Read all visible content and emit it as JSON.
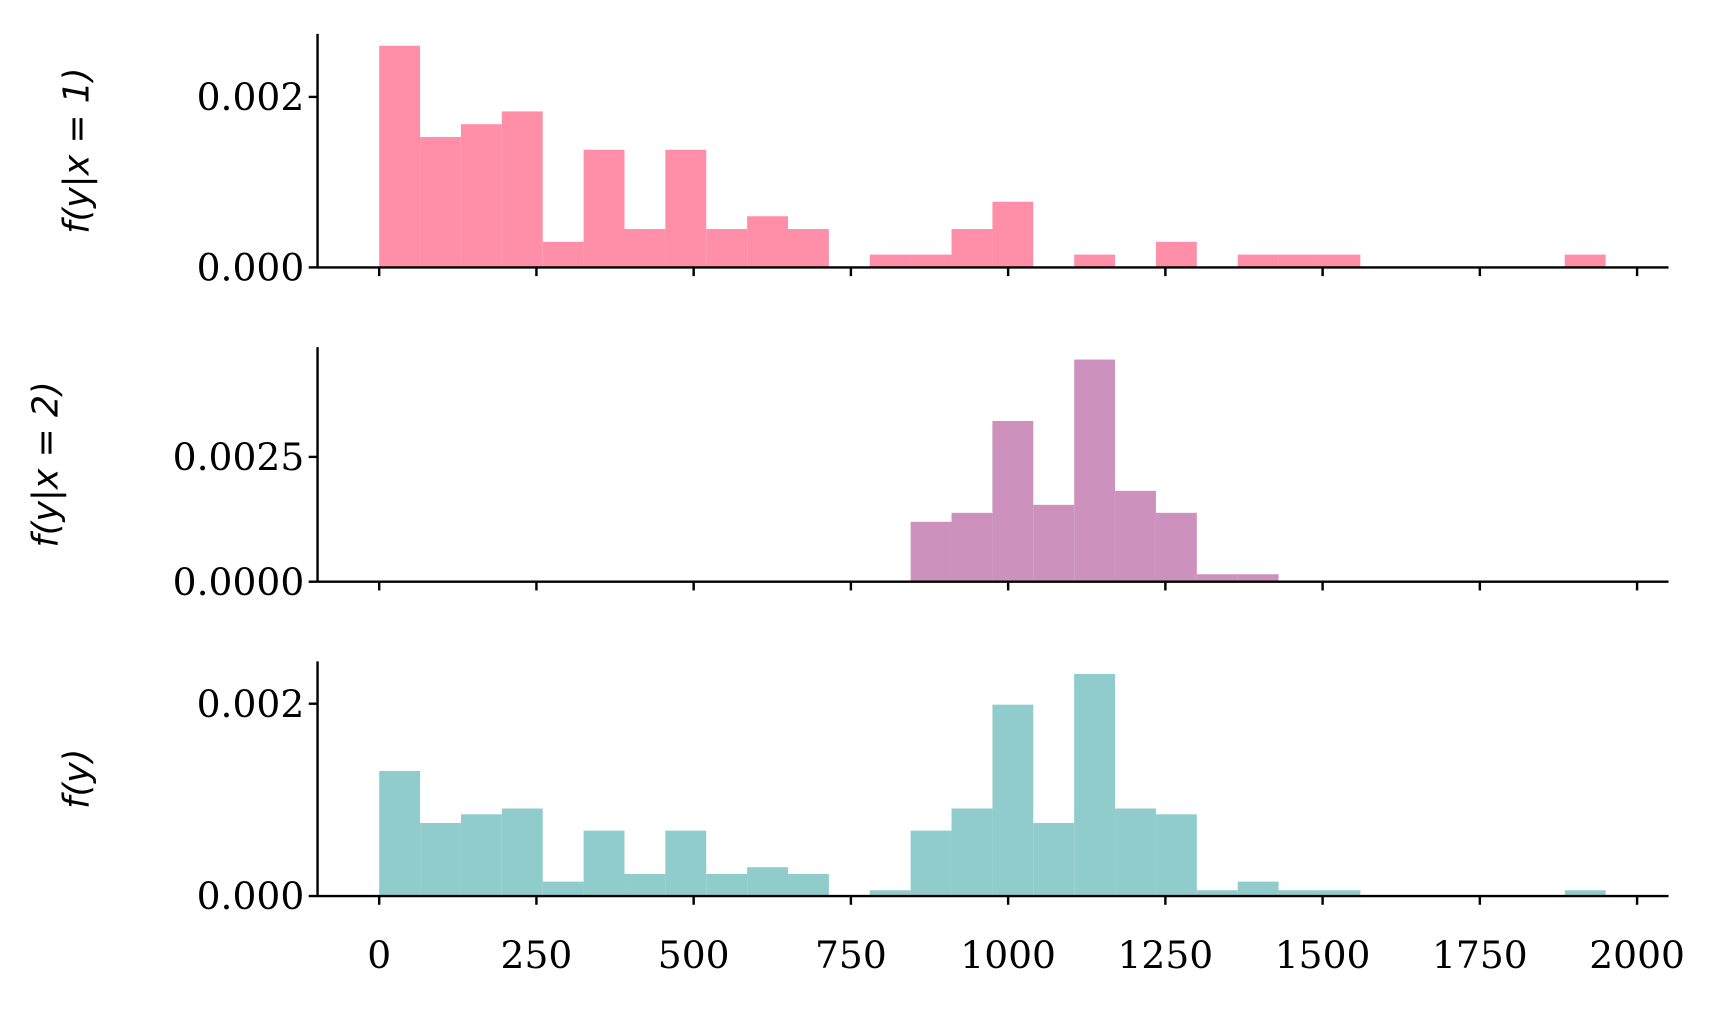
{
  "chart_data": [
    {
      "type": "histogram",
      "ylabel": "f(y|x = 1)",
      "color": "#ff8fa9",
      "bins": [
        0,
        65,
        130,
        195,
        260,
        325,
        390,
        455,
        520,
        585,
        650,
        715,
        780,
        845,
        910,
        975,
        1040,
        1105,
        1170,
        1235,
        1300,
        1365,
        1430,
        1495,
        1560,
        1625,
        1690,
        1755,
        1820,
        1885,
        1950
      ],
      "values": [
        0.0026,
        0.00153,
        0.00168,
        0.00183,
        0.0003,
        0.00138,
        0.00045,
        0.00138,
        0.00045,
        0.0006,
        0.00045,
        0,
        0.00015,
        0.00015,
        0.00045,
        0.00077,
        0,
        0.00015,
        0,
        0.0003,
        0,
        0.00015,
        0.00015,
        0.00015,
        0,
        0,
        0,
        0,
        0,
        0.00015
      ],
      "xlim": [
        -98,
        2050
      ],
      "xticks": [
        0,
        250,
        500,
        750,
        1000,
        1250,
        1500,
        1750,
        2000
      ],
      "ylim": [
        0,
        0.00274
      ],
      "yticks": [
        {
          "value": 0,
          "label": "0.000"
        },
        {
          "value": 0.002,
          "label": "0.002"
        }
      ]
    },
    {
      "type": "histogram",
      "ylabel": "f(y|x = 2)",
      "color": "#cc91bd",
      "bins": [
        0,
        65,
        130,
        195,
        260,
        325,
        390,
        455,
        520,
        585,
        650,
        715,
        780,
        845,
        910,
        975,
        1040,
        1105,
        1170,
        1235,
        1300,
        1365,
        1430,
        1495,
        1560,
        1625,
        1690,
        1755,
        1820,
        1885,
        1950
      ],
      "values": [
        0,
        0,
        0,
        0,
        0,
        0,
        0,
        0,
        0,
        0,
        0,
        0,
        0,
        0.0012,
        0.00138,
        0.00322,
        0.00154,
        0.00445,
        0.00182,
        0.00138,
        0.00015,
        0.00015,
        0,
        0,
        0,
        0,
        0,
        0,
        0,
        0
      ],
      "xlim": [
        -98,
        2050
      ],
      "xticks": [
        0,
        250,
        500,
        750,
        1000,
        1250,
        1500,
        1750,
        2000
      ],
      "ylim": [
        0,
        0.0047
      ],
      "yticks": [
        {
          "value": 0,
          "label": "0.0000"
        },
        {
          "value": 0.0025,
          "label": "0.0025"
        }
      ]
    },
    {
      "type": "histogram",
      "ylabel": "f(y)",
      "color": "#90cccc",
      "bins": [
        0,
        65,
        130,
        195,
        260,
        325,
        390,
        455,
        520,
        585,
        650,
        715,
        780,
        845,
        910,
        975,
        1040,
        1105,
        1170,
        1235,
        1300,
        1365,
        1430,
        1495,
        1560,
        1625,
        1690,
        1755,
        1820,
        1885,
        1950
      ],
      "values": [
        0.0013,
        0.00076,
        0.00085,
        0.00091,
        0.00015,
        0.00068,
        0.00023,
        0.00068,
        0.00023,
        0.0003,
        0.00023,
        0,
        6e-05,
        0.00068,
        0.00091,
        0.00199,
        0.00076,
        0.00231,
        0.00091,
        0.00085,
        6e-05,
        0.00015,
        6e-05,
        6e-05,
        0,
        0,
        0,
        0,
        0,
        6e-05
      ],
      "xlim": [
        -98,
        2050
      ],
      "xticks": [
        0,
        250,
        500,
        750,
        1000,
        1250,
        1500,
        1750,
        2000
      ],
      "ylim": [
        0,
        0.00244
      ],
      "yticks": [
        {
          "value": 0,
          "label": "0.000"
        },
        {
          "value": 0.002,
          "label": "0.002"
        }
      ]
    }
  ]
}
